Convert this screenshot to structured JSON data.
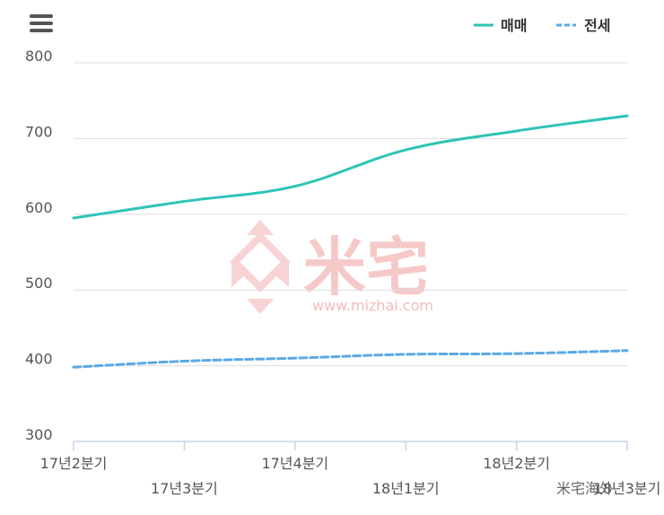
{
  "menu_icon": "hamburger-menu-icon",
  "legend": [
    {
      "label": "매매",
      "color": "#2ec4b6",
      "style": "solid"
    },
    {
      "label": "전세",
      "color": "#5aa9e6",
      "style": "dashed"
    }
  ],
  "watermark": {
    "text": "米宅",
    "url": "www.mizhai.com"
  },
  "corner_label": "米宅海外",
  "chart_data": {
    "type": "line",
    "title": "",
    "xlabel": "",
    "ylabel": "",
    "categories": [
      "17년2분기",
      "17년3분기",
      "17년4분기",
      "18년1분기",
      "18년2분기",
      "18년3분기"
    ],
    "ylim": [
      300,
      800
    ],
    "yticks": [
      300,
      400,
      500,
      600,
      700,
      800
    ],
    "grid": true,
    "legend_position": "top-right",
    "series": [
      {
        "name": "매매",
        "color": "#2ec4b6",
        "dashed": false,
        "values": [
          595,
          617,
          637,
          685,
          710,
          730
        ]
      },
      {
        "name": "전세",
        "color": "#5aa9e6",
        "dashed": true,
        "values": [
          398,
          406,
          410,
          415,
          416,
          420
        ]
      }
    ]
  }
}
